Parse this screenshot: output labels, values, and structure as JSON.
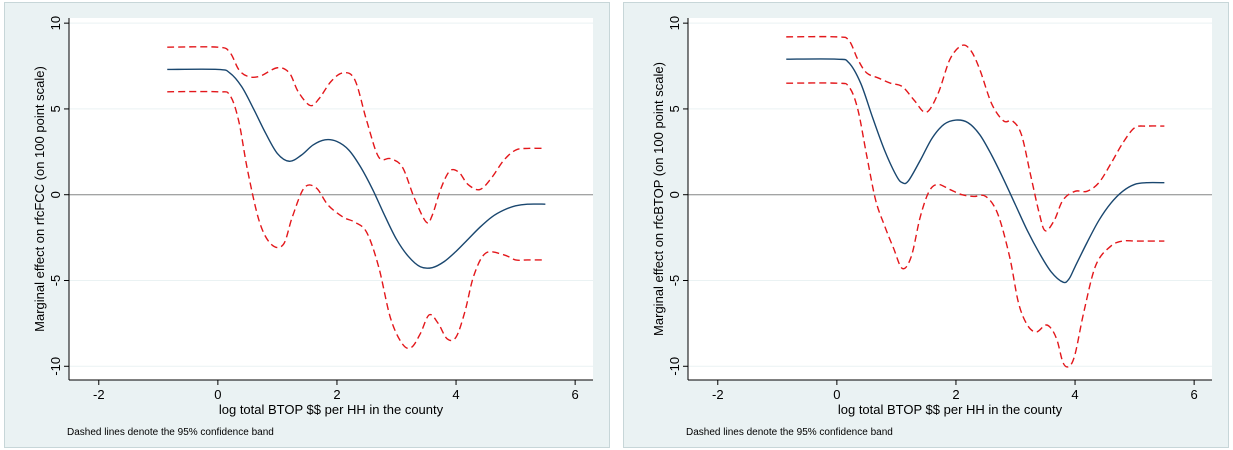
{
  "chart_data": [
    {
      "type": "line",
      "xlabel": "log total BTOP $$ per HH in the county",
      "ylabel": "Marginal effect on rfcFCC (on 100 point scale)",
      "note": "Dashed lines denote the 95% confidence band",
      "xlim": [
        -2.5,
        6.3
      ],
      "ylim": [
        -10.8,
        10.3
      ],
      "xticks": [
        "-2",
        "0",
        "2",
        "4",
        "6"
      ],
      "yticks": [
        "-10",
        "-5",
        "0",
        "5",
        "10"
      ],
      "xtick_values": [
        -2,
        0,
        2,
        4,
        6
      ],
      "ytick_values": [
        -10,
        -5,
        0,
        5,
        10
      ],
      "grid": true,
      "reference_line_y": 0,
      "series": [
        {
          "style": "solid",
          "color": "#1a476f",
          "x": [
            -0.85,
            0.0,
            0.2,
            0.4,
            0.6,
            0.8,
            1.0,
            1.2,
            1.4,
            1.6,
            1.8,
            2.0,
            2.2,
            2.4,
            2.6,
            2.8,
            3.0,
            3.2,
            3.4,
            3.6,
            3.8,
            4.0,
            4.2,
            4.4,
            4.6,
            4.8,
            5.0,
            5.2,
            5.5
          ],
          "y": [
            7.3,
            7.3,
            7.1,
            6.3,
            5.0,
            3.6,
            2.4,
            1.95,
            2.3,
            2.9,
            3.2,
            3.1,
            2.6,
            1.6,
            0.3,
            -1.2,
            -2.6,
            -3.6,
            -4.2,
            -4.25,
            -3.9,
            -3.3,
            -2.6,
            -1.9,
            -1.3,
            -0.9,
            -0.65,
            -0.55,
            -0.55
          ]
        },
        {
          "style": "dashed",
          "color": "#e3171b",
          "x": [
            -0.85,
            0.0,
            0.2,
            0.35,
            0.5,
            0.7,
            1.0,
            1.2,
            1.35,
            1.55,
            1.7,
            1.9,
            2.1,
            2.3,
            2.5,
            2.7,
            2.9,
            3.1,
            3.3,
            3.5,
            3.6,
            3.75,
            3.9,
            4.05,
            4.2,
            4.4,
            4.6,
            4.8,
            5.0,
            5.2,
            5.5
          ],
          "y": [
            8.6,
            8.6,
            8.3,
            7.3,
            6.9,
            6.9,
            7.4,
            7.1,
            6.0,
            5.2,
            5.6,
            6.6,
            7.1,
            6.7,
            4.3,
            2.2,
            2.1,
            1.6,
            -0.2,
            -1.6,
            -1.2,
            0.4,
            1.4,
            1.3,
            0.6,
            0.3,
            1.0,
            2.0,
            2.6,
            2.7,
            2.7
          ]
        },
        {
          "style": "dashed",
          "color": "#e3171b",
          "x": [
            -0.85,
            0.0,
            0.2,
            0.35,
            0.5,
            0.7,
            0.9,
            1.1,
            1.25,
            1.45,
            1.65,
            1.85,
            2.1,
            2.3,
            2.5,
            2.7,
            2.9,
            3.1,
            3.25,
            3.4,
            3.55,
            3.7,
            3.85,
            4.0,
            4.15,
            4.3,
            4.5,
            4.8,
            5.0,
            5.2,
            5.5
          ],
          "y": [
            6.0,
            6.0,
            5.8,
            4.3,
            1.4,
            -1.6,
            -2.9,
            -2.9,
            -1.3,
            0.4,
            0.4,
            -0.6,
            -1.3,
            -1.6,
            -2.2,
            -4.2,
            -7.2,
            -8.7,
            -8.9,
            -8.1,
            -7.0,
            -7.5,
            -8.4,
            -8.3,
            -6.8,
            -4.7,
            -3.4,
            -3.5,
            -3.8,
            -3.8,
            -3.8
          ]
        }
      ]
    },
    {
      "type": "line",
      "xlabel": "log total BTOP $$ per HH in the county",
      "ylabel": "Marginal effect on rfcBTOP (on 100 point scale)",
      "note": "Dashed lines denote the 95% confidence band",
      "xlim": [
        -2.5,
        6.3
      ],
      "ylim": [
        -10.8,
        10.3
      ],
      "xticks": [
        "-2",
        "0",
        "2",
        "4",
        "6"
      ],
      "yticks": [
        "-10",
        "-5",
        "0",
        "5",
        "10"
      ],
      "xtick_values": [
        -2,
        0,
        2,
        4,
        6
      ],
      "ytick_values": [
        -10,
        -5,
        0,
        5,
        10
      ],
      "grid": true,
      "reference_line_y": 0,
      "series": [
        {
          "style": "solid",
          "color": "#1a476f",
          "x": [
            -0.85,
            0.0,
            0.2,
            0.4,
            0.6,
            0.8,
            1.0,
            1.1,
            1.2,
            1.4,
            1.6,
            1.8,
            2.0,
            2.2,
            2.4,
            2.6,
            2.8,
            3.0,
            3.2,
            3.4,
            3.6,
            3.8,
            3.9,
            4.0,
            4.2,
            4.4,
            4.6,
            4.8,
            5.0,
            5.2,
            5.5
          ],
          "y": [
            7.9,
            7.9,
            7.7,
            6.5,
            4.5,
            2.6,
            1.1,
            0.7,
            0.8,
            2.0,
            3.3,
            4.1,
            4.35,
            4.2,
            3.5,
            2.3,
            0.9,
            -0.6,
            -2.1,
            -3.4,
            -4.5,
            -5.1,
            -4.9,
            -4.2,
            -2.8,
            -1.5,
            -0.5,
            0.2,
            0.6,
            0.7,
            0.7
          ]
        },
        {
          "style": "dashed",
          "color": "#e3171b",
          "x": [
            -0.85,
            0.0,
            0.2,
            0.35,
            0.5,
            0.7,
            0.9,
            1.1,
            1.3,
            1.5,
            1.7,
            1.9,
            2.1,
            2.25,
            2.4,
            2.6,
            2.8,
            2.95,
            3.1,
            3.25,
            3.4,
            3.5,
            3.65,
            3.8,
            4.0,
            4.2,
            4.4,
            4.6,
            4.8,
            5.0,
            5.2,
            5.5
          ],
          "y": [
            9.2,
            9.2,
            9.0,
            7.9,
            7.1,
            6.8,
            6.5,
            6.3,
            5.5,
            4.8,
            5.9,
            7.9,
            8.7,
            8.4,
            7.3,
            5.3,
            4.3,
            4.3,
            3.5,
            1.2,
            -1.1,
            -2.1,
            -1.5,
            -0.3,
            0.2,
            0.2,
            0.7,
            1.8,
            3.0,
            3.9,
            4.0,
            4.0
          ]
        },
        {
          "style": "dashed",
          "color": "#e3171b",
          "x": [
            -0.85,
            0.0,
            0.2,
            0.35,
            0.5,
            0.65,
            0.8,
            0.95,
            1.1,
            1.25,
            1.4,
            1.55,
            1.7,
            1.9,
            2.1,
            2.3,
            2.5,
            2.7,
            2.9,
            3.05,
            3.2,
            3.35,
            3.5,
            3.6,
            3.7,
            3.8,
            3.9,
            4.0,
            4.15,
            4.35,
            4.6,
            4.8,
            5.0,
            5.2,
            5.5
          ],
          "y": [
            6.5,
            6.5,
            6.3,
            5.0,
            2.3,
            -0.3,
            -1.8,
            -3.1,
            -4.3,
            -3.6,
            -1.3,
            0.2,
            0.6,
            0.3,
            0.0,
            -0.1,
            -0.1,
            -1.1,
            -3.6,
            -6.3,
            -7.6,
            -8.0,
            -7.6,
            -7.8,
            -8.5,
            -9.8,
            -10.0,
            -9.3,
            -6.8,
            -4.1,
            -3.0,
            -2.7,
            -2.7,
            -2.7,
            -2.7
          ]
        }
      ]
    }
  ],
  "colors": {
    "panel_bg": "#eaf2f3",
    "plot_bg": "#ffffff",
    "grid": "#eaf2f3",
    "axis": "#000000",
    "zero_line": "#888888"
  }
}
